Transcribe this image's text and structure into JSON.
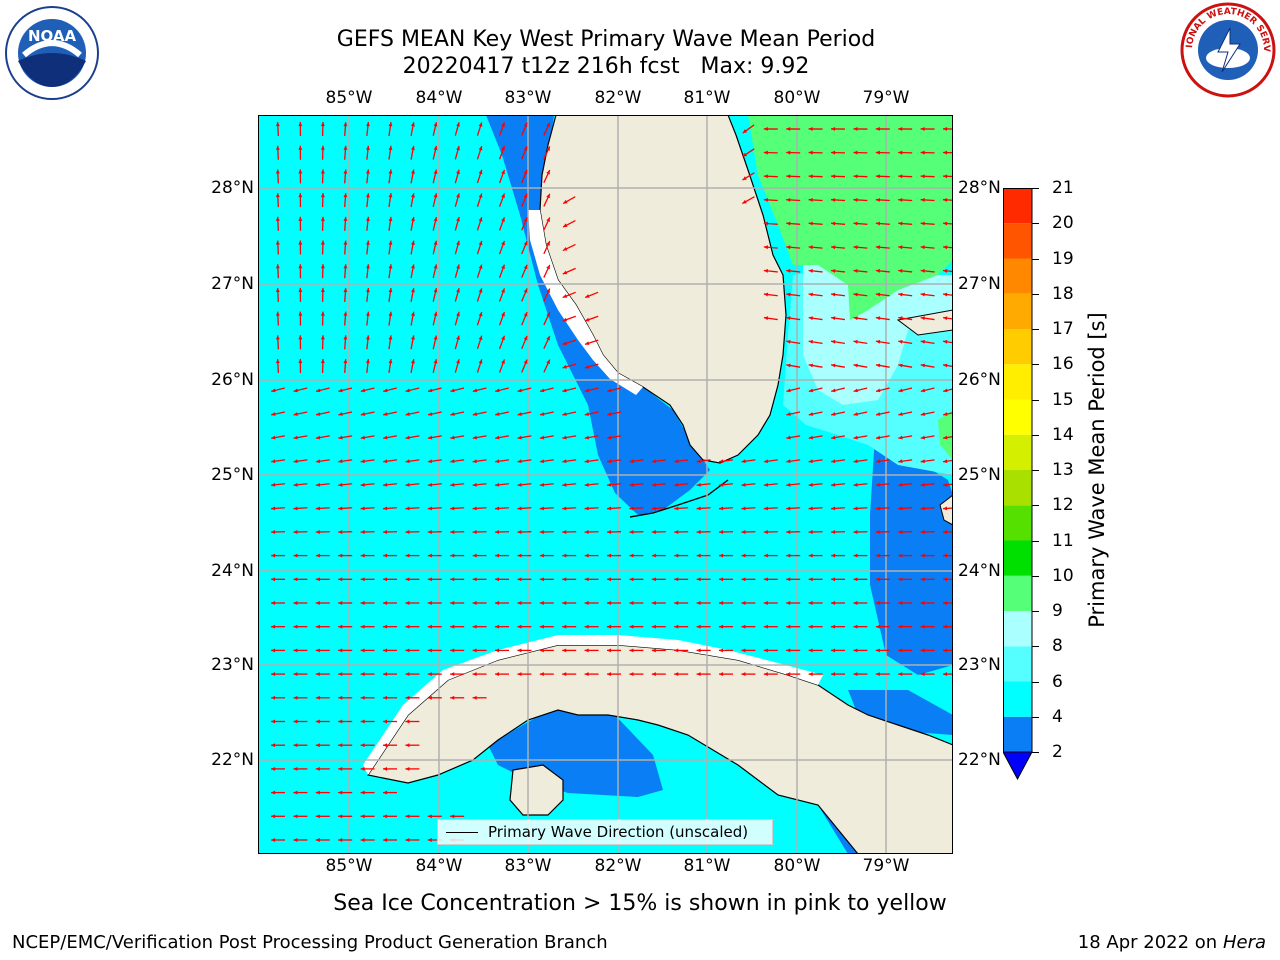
{
  "header": {
    "title_line1": "GEFS MEAN Key West Primary Wave Mean Period",
    "title_line2": "20220417 t12z 216h fcst   Max: 9.92"
  },
  "logos": {
    "left": {
      "name": "noaa-logo",
      "text": "NOAA"
    },
    "right": {
      "name": "nws-logo",
      "text": "NATIONAL WEATHER SERVICE"
    }
  },
  "map": {
    "lon_labels": [
      "85°W",
      "84°W",
      "83°W",
      "82°W",
      "81°W",
      "80°W",
      "79°W"
    ],
    "lat_labels": [
      "28°N",
      "27°N",
      "26°N",
      "25°N",
      "24°N",
      "23°N",
      "22°N"
    ],
    "legend_label": "Primary Wave Direction (unscaled)",
    "colors": {
      "land": "#efecdc",
      "band_2_4": "#0a7ef5",
      "band_4_6": "#00ffff",
      "band_6_8": "#55ffff",
      "band_8_9": "#aaffff",
      "band_9_10": "#55ff77",
      "arrow": "#ff0000",
      "grid": "#b0b0b0"
    }
  },
  "colorbar": {
    "label": "Primary Wave Mean Period [s]",
    "ticks": [
      "2",
      "4",
      "6",
      "8",
      "9",
      "10",
      "11",
      "12",
      "13",
      "14",
      "15",
      "16",
      "17",
      "18",
      "19",
      "20",
      "21"
    ],
    "colors": [
      "#0a7ef5",
      "#00ffff",
      "#55ffff",
      "#aaffff",
      "#55ff77",
      "#00e000",
      "#55e000",
      "#aae000",
      "#d4f000",
      "#ffff00",
      "#ffee00",
      "#ffcc00",
      "#ffaa00",
      "#ff8800",
      "#ff5500",
      "#ff2a00"
    ],
    "extend_color": "#0000ff"
  },
  "note": "Sea Ice Concentration > 15% is shown in pink to yellow",
  "footer": {
    "left": "NCEP/EMC/Verification Post Processing Product Generation Branch",
    "right_prefix": "18 Apr 2022 on ",
    "right_host": "Hera"
  }
}
